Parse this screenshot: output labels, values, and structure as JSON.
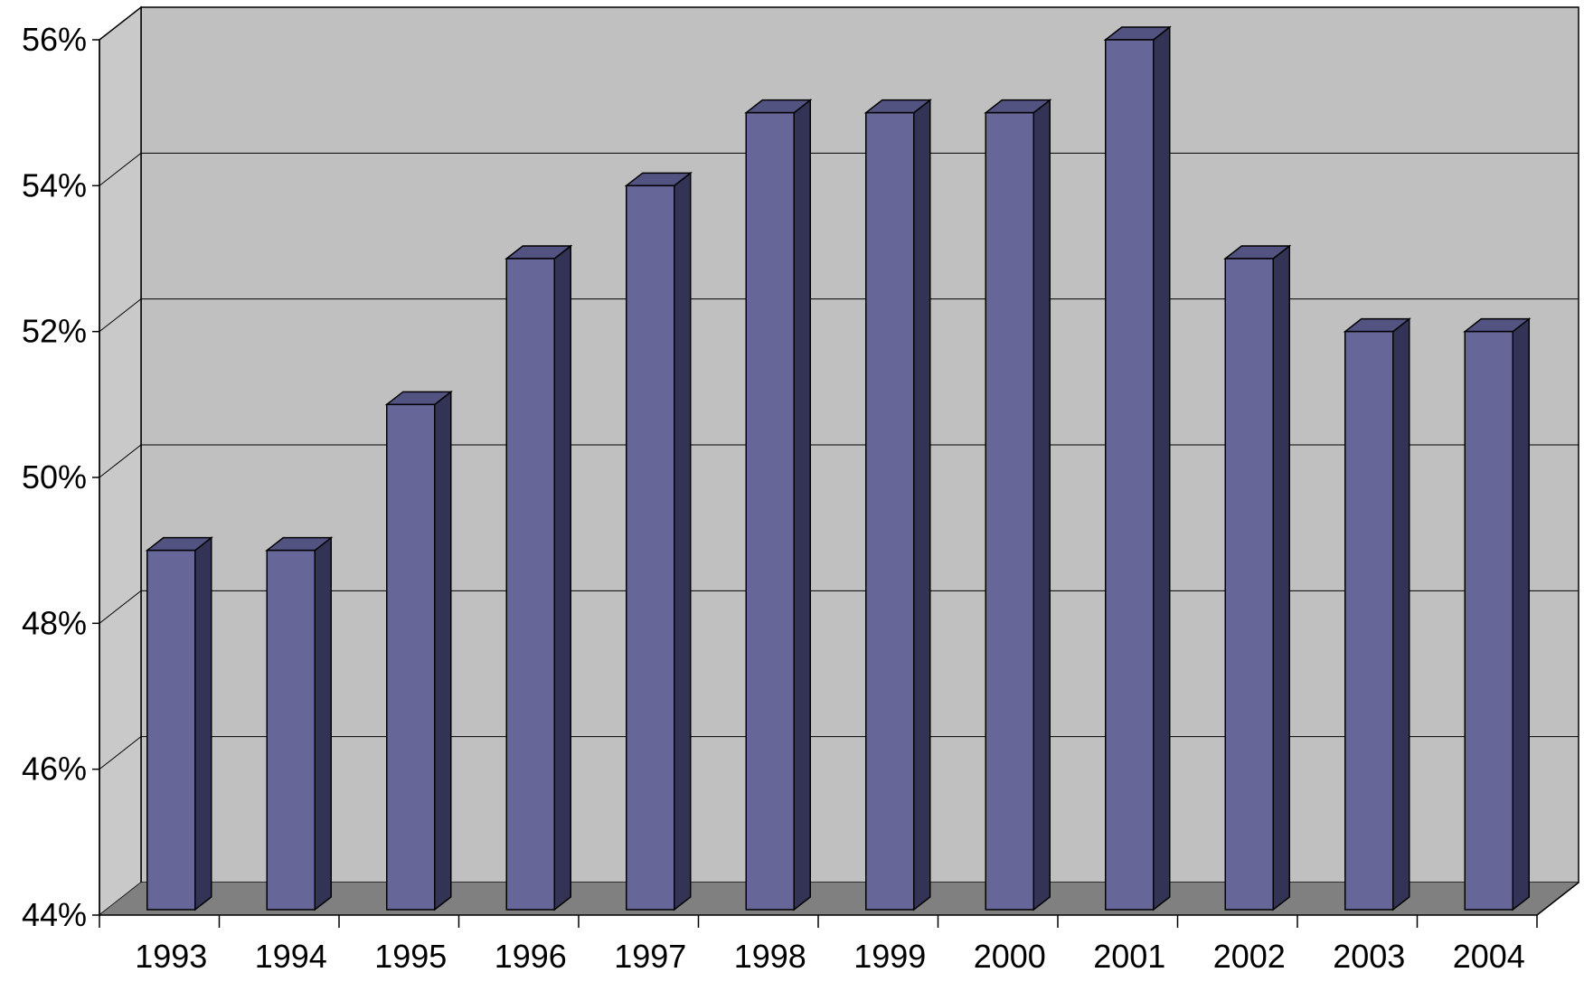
{
  "colors": {
    "back_wall": "#c0c0c0",
    "side_wall": "#c9c9c9",
    "floor": "#808080",
    "bar_front": "#666699",
    "bar_top": "#535382",
    "bar_side": "#333355",
    "gridline": "#000000",
    "outline": "#000000"
  },
  "chart_data": {
    "type": "bar",
    "style": "3d-column",
    "title": "",
    "xlabel": "",
    "ylabel": "",
    "ylim": [
      44,
      56
    ],
    "y_ticks": [
      44,
      46,
      48,
      50,
      52,
      54,
      56
    ],
    "y_tick_labels": [
      "44%",
      "46%",
      "48%",
      "50%",
      "52%",
      "54%",
      "56%"
    ],
    "grid": true,
    "legend": "none",
    "categories": [
      "1993",
      "1994",
      "1995",
      "1996",
      "1997",
      "1998",
      "1999",
      "2000",
      "2001",
      "2002",
      "2003",
      "2004"
    ],
    "series": [
      {
        "values": [
          49,
          49,
          51,
          53,
          54,
          55,
          55,
          55,
          56,
          53,
          52,
          52
        ]
      }
    ]
  }
}
